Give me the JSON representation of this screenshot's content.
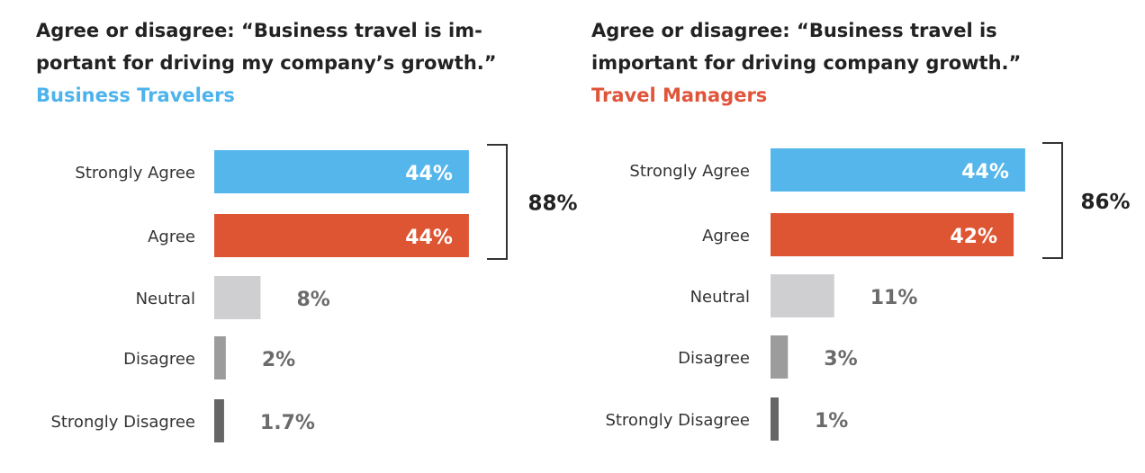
{
  "chart_data": [
    {
      "type": "bar",
      "orientation": "horizontal",
      "title_lines": [
        "Agree or disagree: “Business travel is im-",
        "portant for driving my company’s growth.”"
      ],
      "subtitle": "Business Travelers",
      "subtitle_color": "#4db3ec",
      "categories": [
        "Strongly Agree",
        "Agree",
        "Neutral",
        "Disagree",
        "Strongly Disagree"
      ],
      "values": [
        44,
        44,
        8,
        2,
        1.7
      ],
      "value_labels": [
        "44%",
        "44%",
        "8%",
        "2%",
        "1.7%"
      ],
      "bar_colors": [
        "#55b6ec",
        "#dd5533",
        "#cfcfd1",
        "#9c9c9c",
        "#666666"
      ],
      "bracket_total": "88%",
      "bracket_spans": [
        "Strongly Agree",
        "Agree"
      ]
    },
    {
      "type": "bar",
      "orientation": "horizontal",
      "title_lines": [
        "Agree or disagree: “Business travel is",
        "important for driving company growth.”"
      ],
      "subtitle": "Travel Managers",
      "subtitle_color": "#e0543a",
      "categories": [
        "Strongly Agree",
        "Agree",
        "Neutral",
        "Disagree",
        "Strongly Disagree"
      ],
      "values": [
        44,
        42,
        11,
        3,
        1
      ],
      "value_labels": [
        "44%",
        "42%",
        "11%",
        "3%",
        "1%"
      ],
      "bar_colors": [
        "#55b6ec",
        "#dd5533",
        "#cfcfd1",
        "#9c9c9c",
        "#666666"
      ],
      "bracket_total": "86%",
      "bracket_spans": [
        "Strongly Agree",
        "Agree"
      ]
    }
  ]
}
